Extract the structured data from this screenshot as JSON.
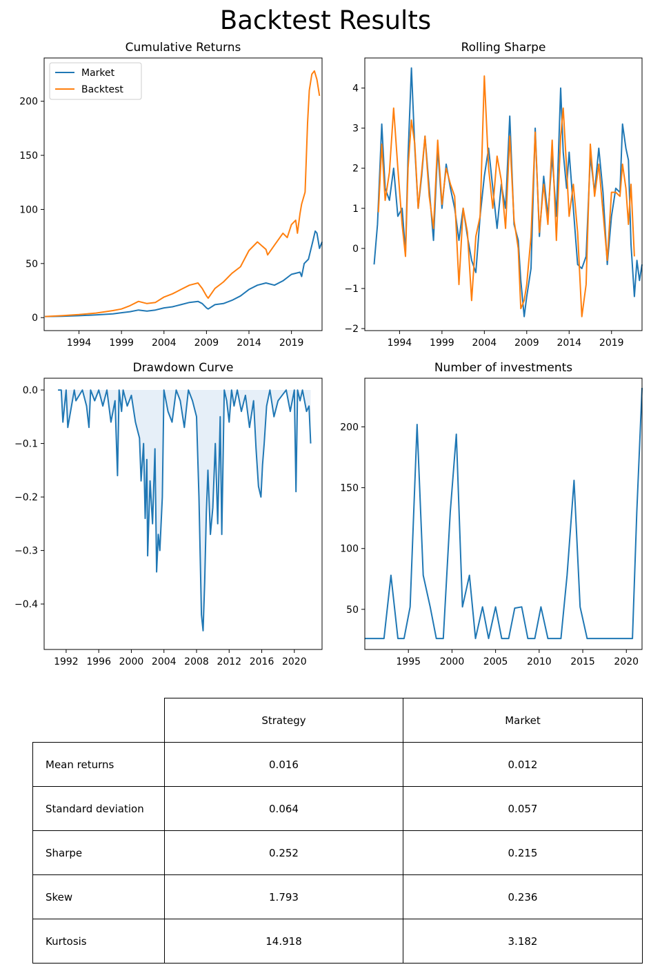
{
  "figure_title": "Backtest Results",
  "colors": {
    "market": "#1f77b4",
    "backtest": "#ff7f0e",
    "fill": "#e6eff8"
  },
  "chart_data": [
    {
      "id": "cumulative",
      "type": "line",
      "title": "Cumulative Returns",
      "xlim": [
        1989.9,
        2022.6
      ],
      "ylim": [
        -12,
        240
      ],
      "xticks": [
        1994,
        1999,
        2004,
        2009,
        2014,
        2019
      ],
      "yticks": [
        0,
        50,
        100,
        150,
        200
      ],
      "legend": {
        "placement": "top-left",
        "entries": [
          "Market",
          "Backtest"
        ]
      },
      "series": [
        {
          "name": "Market",
          "color": "#1f77b4",
          "x": [
            1990,
            1992,
            1994,
            1996,
            1998,
            1999,
            2000,
            2001,
            2002,
            2003,
            2004,
            2005,
            2006,
            2007,
            2008,
            2008.5,
            2009,
            2009.2,
            2010,
            2011,
            2012,
            2013,
            2014,
            2015,
            2016,
            2017,
            2018,
            2019,
            2020,
            2020.2,
            2020.5,
            2021,
            2021.5,
            2021.8,
            2022,
            2022.3,
            2022.6
          ],
          "y": [
            1,
            1.3,
            1.8,
            2.5,
            3.5,
            4.5,
            5.5,
            7,
            6,
            7,
            9,
            10,
            12,
            14,
            15,
            13,
            9,
            8,
            12,
            13,
            16,
            20,
            26,
            30,
            32,
            30,
            34,
            40,
            42,
            38,
            50,
            54,
            70,
            80,
            78,
            64,
            70
          ]
        },
        {
          "name": "Backtest",
          "color": "#ff7f0e",
          "x": [
            1990,
            1992,
            1994,
            1996,
            1998,
            1999,
            2000,
            2001,
            2002,
            2003,
            2004,
            2005,
            2006,
            2007,
            2008,
            2008.5,
            2009,
            2009.2,
            2010,
            2011,
            2012,
            2013,
            2014,
            2015,
            2016,
            2016.2,
            2017,
            2018,
            2018.5,
            2019,
            2019.5,
            2019.7,
            2020,
            2020.2,
            2020.6,
            2020.9,
            2021.1,
            2021.4,
            2021.7,
            2022,
            2022.3
          ],
          "y": [
            1,
            1.8,
            2.8,
            4.2,
            6.5,
            8,
            11,
            15,
            13,
            14,
            19,
            22,
            26,
            30,
            32,
            27,
            20,
            18,
            27,
            33,
            41,
            47,
            62,
            70,
            63,
            58,
            67,
            78,
            74,
            86,
            90,
            78,
            96,
            105,
            116,
            180,
            210,
            225,
            228,
            220,
            205
          ]
        }
      ]
    },
    {
      "id": "rolling-sharpe",
      "type": "line",
      "title": "Rolling Sharpe",
      "xlim": [
        1989.9,
        2022.6
      ],
      "ylim": [
        -2.05,
        4.75
      ],
      "xticks": [
        1994,
        1999,
        2004,
        2009,
        2014,
        2019
      ],
      "yticks": [
        -2,
        -1,
        0,
        1,
        2,
        3,
        4
      ],
      "series": [
        {
          "name": "",
          "color": "#1f77b4",
          "x": [
            1991,
            1991.4,
            1991.9,
            1992.3,
            1992.8,
            1993.3,
            1993.8,
            1994.3,
            1994.7,
            1995,
            1995.4,
            1995.8,
            1996.2,
            1996.6,
            1997,
            1997.5,
            1998,
            1998.5,
            1999,
            1999.5,
            2000,
            2000.5,
            2001,
            2001.5,
            2002,
            2002.5,
            2003,
            2003.5,
            2004,
            2004.5,
            2005,
            2005.5,
            2006,
            2006.5,
            2007,
            2007.5,
            2008,
            2008.3,
            2008.7,
            2009,
            2009.5,
            2010,
            2010.5,
            2011,
            2011.5,
            2012,
            2012.5,
            2013,
            2013.3,
            2013.7,
            2014,
            2014.5,
            2015,
            2015.5,
            2016,
            2016.5,
            2017,
            2017.5,
            2018,
            2018.5,
            2019,
            2019.5,
            2020,
            2020.3,
            2020.7,
            2021,
            2021.3,
            2021.7,
            2022,
            2022.3,
            2022.6
          ],
          "y": [
            -0.4,
            0.6,
            3.1,
            1.5,
            1.2,
            2.0,
            0.8,
            1.0,
            -0.1,
            2.3,
            4.5,
            2.5,
            1.0,
            1.8,
            2.8,
            1.5,
            0.2,
            2.5,
            1.0,
            2.1,
            1.5,
            1.0,
            0.2,
            1.0,
            0.3,
            -0.3,
            -0.6,
            0.8,
            1.8,
            2.5,
            1.5,
            0.5,
            1.6,
            1.0,
            3.3,
            0.6,
            0.2,
            -0.8,
            -1.7,
            -1.2,
            -0.5,
            3.0,
            0.3,
            1.8,
            0.8,
            2.3,
            0.8,
            4.0,
            2.4,
            1.5,
            2.4,
            1.0,
            -0.4,
            -0.5,
            -0.2,
            2.3,
            1.4,
            2.5,
            1.4,
            -0.4,
            0.8,
            1.5,
            1.4,
            3.1,
            2.5,
            2.2,
            0.1,
            -1.2,
            -0.3,
            -0.8,
            -0.4
          ]
        },
        {
          "name": "",
          "color": "#ff7f0e",
          "x": [
            1991.5,
            1991.9,
            1992.3,
            1992.8,
            1993.3,
            1993.8,
            1994.3,
            1994.7,
            1995,
            1995.4,
            1995.8,
            1996.2,
            1996.6,
            1997,
            1997.5,
            1998,
            1998.5,
            1999,
            1999.5,
            2000,
            2000.5,
            2001,
            2001.5,
            2002,
            2002.5,
            2003,
            2003.5,
            2004,
            2004.5,
            2005,
            2005.5,
            2006,
            2006.5,
            2007,
            2007.5,
            2008,
            2008.3,
            2008.7,
            2009,
            2009.5,
            2010,
            2010.5,
            2011,
            2011.5,
            2012,
            2012.5,
            2013,
            2013.3,
            2013.7,
            2014,
            2014.5,
            2015,
            2015.5,
            2016,
            2016.5,
            2017,
            2017.5,
            2018,
            2018.5,
            2019,
            2019.5,
            2020,
            2020.3,
            2020.7,
            2021,
            2021.3,
            2021.7
          ],
          "y": [
            0.9,
            2.6,
            1.2,
            1.9,
            3.5,
            2.0,
            0.6,
            -0.2,
            2.0,
            3.2,
            2.6,
            1.0,
            1.9,
            2.8,
            1.3,
            0.5,
            2.7,
            1.1,
            2.0,
            1.6,
            1.3,
            -0.9,
            1.0,
            0.4,
            -1.3,
            0.3,
            0.8,
            4.3,
            2.0,
            1.0,
            2.3,
            1.7,
            0.5,
            2.8,
            0.7,
            0.0,
            -1.5,
            -1.3,
            -0.9,
            0.3,
            2.9,
            0.4,
            1.6,
            0.6,
            2.7,
            0.2,
            2.8,
            3.5,
            2.0,
            0.8,
            1.6,
            0.4,
            -1.7,
            -0.9,
            2.6,
            1.3,
            2.1,
            0.9,
            -0.3,
            1.4,
            1.4,
            1.3,
            2.1,
            1.5,
            0.6,
            1.6,
            -0.2
          ]
        }
      ]
    },
    {
      "id": "drawdown",
      "type": "area",
      "title": "Drawdown Curve",
      "xlim": [
        1989.3,
        2023.4
      ],
      "ylim": [
        -0.485,
        0.022
      ],
      "xticks": [
        1992,
        1996,
        2000,
        2004,
        2008,
        2012,
        2016,
        2020
      ],
      "yticks": [
        0.0,
        -0.1,
        -0.2,
        -0.3,
        -0.4
      ],
      "series": [
        {
          "name": "",
          "color": "#1f77b4",
          "x": [
            1991,
            1991.4,
            1991.6,
            1992,
            1992.2,
            1993,
            1993.2,
            1994,
            1994.5,
            1994.8,
            1995,
            1995.5,
            1996,
            1996.5,
            1997,
            1997.5,
            1998,
            1998.3,
            1998.5,
            1998.8,
            1999,
            1999.5,
            2000,
            2000.5,
            2001,
            2001.2,
            2001.5,
            2001.7,
            2001.9,
            2002,
            2002.3,
            2002.6,
            2002.9,
            2003.1,
            2003.3,
            2003.5,
            2003.8,
            2004,
            2004.5,
            2005,
            2005.5,
            2006,
            2006.5,
            2007,
            2007.5,
            2008,
            2008.3,
            2008.6,
            2008.8,
            2009,
            2009.2,
            2009.4,
            2009.7,
            2010,
            2010.3,
            2010.6,
            2010.9,
            2011.1,
            2011.4,
            2011.7,
            2012,
            2012.3,
            2012.6,
            2013,
            2013.5,
            2014,
            2014.5,
            2015,
            2015.3,
            2015.6,
            2015.9,
            2016.1,
            2016.3,
            2016.6,
            2017,
            2017.5,
            2018,
            2018.5,
            2019,
            2019.5,
            2020,
            2020.2,
            2020.4,
            2020.7,
            2021,
            2021.5,
            2021.8,
            2022
          ],
          "y": [
            0,
            0,
            -0.06,
            0,
            -0.07,
            0,
            -0.02,
            0,
            -0.03,
            -0.07,
            0,
            -0.02,
            0,
            -0.03,
            0,
            -0.06,
            -0.02,
            -0.16,
            0,
            -0.04,
            0,
            -0.03,
            -0.01,
            -0.06,
            -0.09,
            -0.17,
            -0.1,
            -0.24,
            -0.13,
            -0.31,
            -0.17,
            -0.25,
            -0.11,
            -0.34,
            -0.27,
            -0.3,
            -0.2,
            0,
            -0.04,
            -0.06,
            0,
            -0.02,
            -0.07,
            0,
            -0.02,
            -0.05,
            -0.2,
            -0.42,
            -0.45,
            -0.36,
            -0.23,
            -0.15,
            -0.27,
            -0.22,
            -0.1,
            -0.25,
            -0.05,
            -0.27,
            0,
            -0.02,
            -0.06,
            0,
            -0.03,
            0,
            -0.04,
            -0.01,
            -0.07,
            -0.02,
            -0.11,
            -0.18,
            -0.2,
            -0.14,
            -0.1,
            -0.03,
            0,
            -0.05,
            -0.02,
            -0.01,
            0,
            -0.04,
            0,
            -0.19,
            0,
            -0.02,
            0,
            -0.04,
            -0.03,
            -0.1
          ]
        }
      ]
    },
    {
      "id": "investments",
      "type": "line",
      "title": "Number of investments",
      "xlim": [
        1990.0,
        2021.8
      ],
      "ylim": [
        17,
        240
      ],
      "xticks": [
        1995,
        2000,
        2005,
        2010,
        2015,
        2020
      ],
      "yticks": [
        50,
        100,
        150,
        200
      ],
      "series": [
        {
          "name": "",
          "color": "#1f77b4",
          "x": [
            1990,
            1991.5,
            1992.2,
            1993,
            1993.8,
            1994.5,
            1995.2,
            1996,
            1996.7,
            1997.5,
            1998.2,
            1999,
            1999.8,
            2000.5,
            2001.2,
            2002,
            2002.7,
            2003.5,
            2004.2,
            2005,
            2005.7,
            2006.5,
            2007.2,
            2008,
            2008.7,
            2009.5,
            2010.2,
            2011,
            2011.7,
            2012.5,
            2013.2,
            2014,
            2014.7,
            2015.5,
            2016.2,
            2017,
            2017.7,
            2018.5,
            2019.2,
            2020,
            2020.7,
            2021.2,
            2021.8
          ],
          "y": [
            26,
            26,
            26,
            78,
            26,
            26,
            52,
            202,
            78,
            52,
            26,
            26,
            130,
            194,
            52,
            78,
            26,
            52,
            26,
            52,
            26,
            26,
            51,
            52,
            26,
            26,
            52,
            26,
            26,
            26,
            78,
            156,
            52,
            26,
            26,
            26,
            26,
            26,
            26,
            26,
            26,
            130,
            232
          ]
        }
      ]
    }
  ],
  "table": {
    "columns": [
      "Strategy",
      "Market"
    ],
    "rows": [
      {
        "label": "Mean returns",
        "strategy": "0.016",
        "market": "0.012"
      },
      {
        "label": "Standard deviation",
        "strategy": "0.064",
        "market": "0.057"
      },
      {
        "label": "Sharpe",
        "strategy": "0.252",
        "market": "0.215"
      },
      {
        "label": "Skew",
        "strategy": "1.793",
        "market": "0.236"
      },
      {
        "label": "Kurtosis",
        "strategy": "14.918",
        "market": "3.182"
      }
    ]
  }
}
